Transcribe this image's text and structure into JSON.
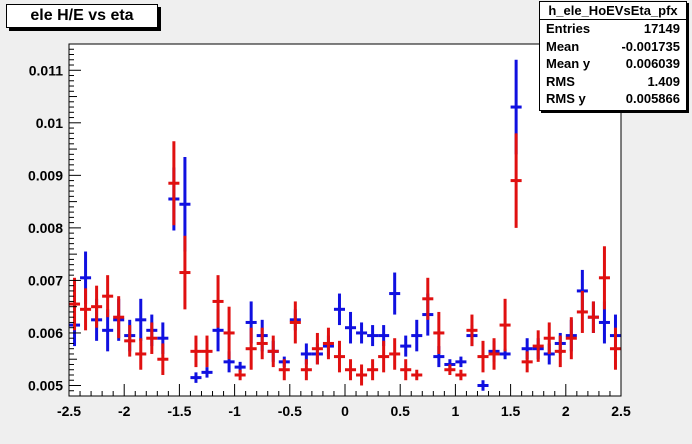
{
  "title": "ele H/E vs eta",
  "stats": {
    "name": "h_ele_HoEVsEta_pfx",
    "rows": [
      {
        "label": "Entries",
        "value": "17149"
      },
      {
        "label": "Mean",
        "value": "-0.001735"
      },
      {
        "label": "Mean y",
        "value": "0.006039"
      },
      {
        "label": "RMS",
        "value": "1.409"
      },
      {
        "label": "RMS y",
        "value": "0.005866"
      }
    ]
  },
  "colors": {
    "series_blue": "#1010e0",
    "series_red": "#e01010",
    "frame": "#000000",
    "background": "#ffffff",
    "canvas": "#efefef"
  },
  "chart_data": {
    "type": "scatter",
    "title": "ele H/E vs eta",
    "xlim": [
      -2.5,
      2.5
    ],
    "ylim": [
      0.0048,
      0.0115
    ],
    "x_ticks": [
      "-2.5",
      "-2",
      "-1.5",
      "-1",
      "-0.5",
      "0",
      "0.5",
      "1",
      "1.5",
      "2",
      "2.5"
    ],
    "y_ticks": [
      "0.005",
      "0.006",
      "0.007",
      "0.008",
      "0.009",
      "0.01",
      "0.011"
    ],
    "grid": false,
    "bin_width": 0.1,
    "series": [
      {
        "color": "blue",
        "x": [
          -2.45,
          -2.35,
          -2.25,
          -2.15,
          -2.05,
          -1.95,
          -1.85,
          -1.75,
          -1.65,
          -1.55,
          -1.45,
          -1.35,
          -1.25,
          -1.15,
          -1.05,
          -0.95,
          -0.85,
          -0.75,
          -0.65,
          -0.55,
          -0.45,
          -0.35,
          -0.25,
          -0.15,
          -0.05,
          0.05,
          0.15,
          0.25,
          0.35,
          0.45,
          0.55,
          0.65,
          0.75,
          0.85,
          0.95,
          1.05,
          1.15,
          1.25,
          1.35,
          1.45,
          1.55,
          1.65,
          1.75,
          1.85,
          1.95,
          2.05,
          2.15,
          2.25,
          2.35,
          2.45
        ],
        "y": [
          0.00615,
          0.00705,
          0.00625,
          0.00605,
          0.00625,
          0.00595,
          0.00625,
          0.00605,
          0.0059,
          0.00855,
          0.00845,
          0.00515,
          0.00525,
          0.00605,
          0.00545,
          0.00535,
          0.0062,
          0.00595,
          0.00565,
          0.00545,
          0.00625,
          0.0056,
          0.0056,
          0.00575,
          0.00645,
          0.0061,
          0.006,
          0.00595,
          0.00595,
          0.00675,
          0.00575,
          0.00595,
          0.00635,
          0.00555,
          0.0054,
          0.00545,
          0.00595,
          0.005,
          0.00565,
          0.0056,
          0.0103,
          0.0057,
          0.0057,
          0.0056,
          0.0058,
          0.00595,
          0.0068,
          0.0063,
          0.0062,
          0.00595
        ],
        "err": [
          0.0004,
          0.0005,
          0.0004,
          0.0004,
          0.0004,
          0.0003,
          0.0004,
          0.0003,
          0.0003,
          0.0006,
          0.0009,
          0.0001,
          0.0001,
          0.0004,
          0.0002,
          0.0001,
          0.0004,
          0.0003,
          0.0002,
          0.0001,
          0.0002,
          0.0002,
          0.0002,
          0.0002,
          0.0003,
          0.0003,
          0.0002,
          0.0002,
          0.0002,
          0.0004,
          0.0002,
          0.0003,
          0.0004,
          0.0002,
          0.0001,
          0.0001,
          0.0002,
          0.0001,
          0.0002,
          0.0001,
          0.0009,
          0.0002,
          0.0002,
          0.0002,
          0.0002,
          0.0003,
          0.0004,
          0.0003,
          0.0004,
          0.0004
        ]
      },
      {
        "color": "red",
        "x": [
          -2.45,
          -2.35,
          -2.25,
          -2.15,
          -2.05,
          -1.95,
          -1.85,
          -1.75,
          -1.65,
          -1.55,
          -1.45,
          -1.35,
          -1.25,
          -1.15,
          -1.05,
          -0.95,
          -0.85,
          -0.75,
          -0.65,
          -0.55,
          -0.45,
          -0.35,
          -0.25,
          -0.15,
          -0.05,
          0.05,
          0.15,
          0.25,
          0.35,
          0.45,
          0.55,
          0.65,
          0.75,
          0.85,
          0.95,
          1.05,
          1.15,
          1.25,
          1.35,
          1.45,
          1.55,
          1.65,
          1.75,
          1.85,
          1.95,
          2.05,
          2.15,
          2.25,
          2.35,
          2.45
        ],
        "y": [
          0.00655,
          0.00645,
          0.0065,
          0.0067,
          0.0063,
          0.00585,
          0.0056,
          0.0059,
          0.0055,
          0.00885,
          0.00715,
          0.00565,
          0.00565,
          0.0066,
          0.006,
          0.0052,
          0.0057,
          0.0058,
          0.00565,
          0.0053,
          0.0062,
          0.0053,
          0.0057,
          0.0058,
          0.00555,
          0.0053,
          0.0052,
          0.0053,
          0.00555,
          0.0056,
          0.0053,
          0.0052,
          0.00665,
          0.006,
          0.0053,
          0.0052,
          0.00605,
          0.00555,
          0.0056,
          0.00615,
          0.0089,
          0.00545,
          0.00575,
          0.0059,
          0.00565,
          0.0059,
          0.0064,
          0.0063,
          0.00705,
          0.0057
        ],
        "err": [
          0.0005,
          0.0004,
          0.0004,
          0.0004,
          0.0004,
          0.0003,
          0.0003,
          0.0003,
          0.0003,
          0.0008,
          0.0007,
          0.0003,
          0.0003,
          0.0005,
          0.0005,
          0.0001,
          0.0004,
          0.0003,
          0.0003,
          0.0002,
          0.0004,
          0.0002,
          0.0003,
          0.0003,
          0.0003,
          0.0002,
          0.0002,
          0.0002,
          0.0003,
          0.0003,
          0.0002,
          0.0001,
          0.0004,
          0.0004,
          0.0001,
          0.0001,
          0.0003,
          0.0003,
          0.0003,
          0.0005,
          0.0009,
          0.0002,
          0.0003,
          0.0003,
          0.0003,
          0.0004,
          0.0004,
          0.0003,
          0.0006,
          0.0004
        ]
      }
    ]
  }
}
